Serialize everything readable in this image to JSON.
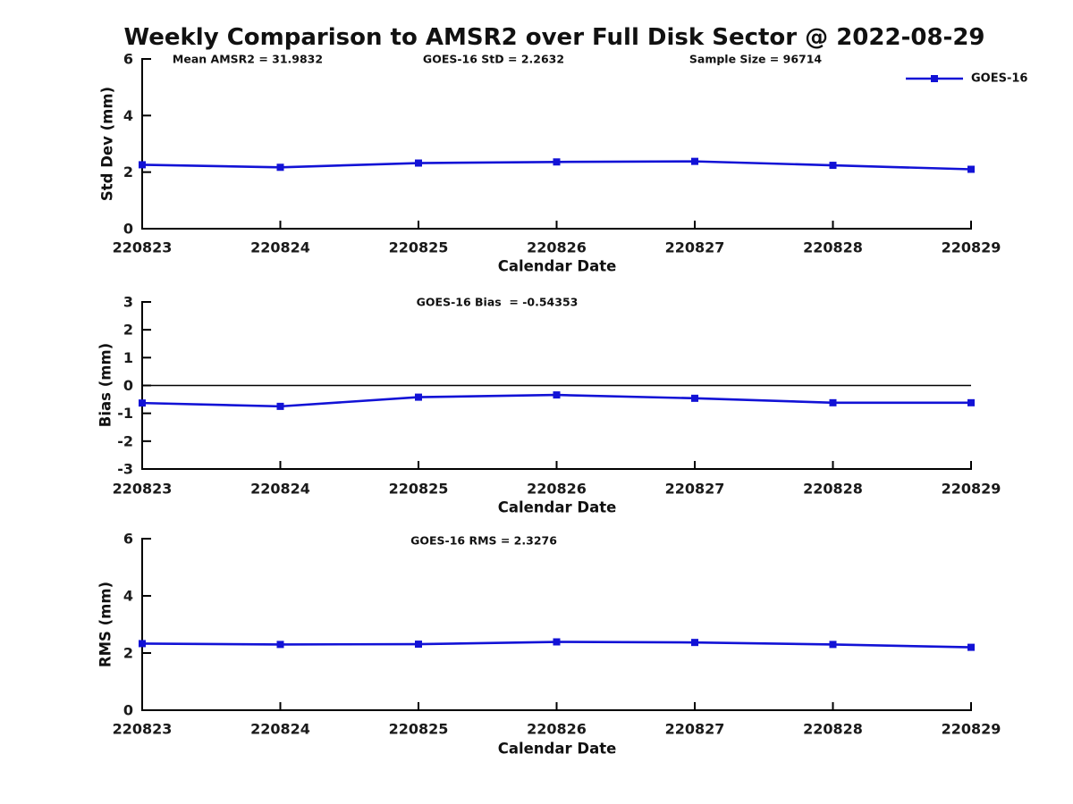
{
  "figure": {
    "title": "Weekly Comparison to AMSR2 over Full Disk Sector @ 2022-08-29"
  },
  "legend": {
    "label": "GOES-16",
    "marker": "filled-square",
    "position": "top-right"
  },
  "colors": {
    "series": "#1212d6",
    "axis": "#000000",
    "text": "#1a1a1a",
    "zero_line": "#000000"
  },
  "chart_data": [
    {
      "type": "line",
      "panel": "std-dev",
      "annotations": [
        "Mean AMSR2 = 31.9832",
        "GOES-16 StD = 2.2632",
        "Sample Size = 96714"
      ],
      "categories": [
        "220823",
        "220824",
        "220825",
        "220826",
        "220827",
        "220828",
        "220829"
      ],
      "series": [
        {
          "name": "GOES-16",
          "values": [
            2.26,
            2.17,
            2.32,
            2.36,
            2.38,
            2.24,
            2.1
          ]
        }
      ],
      "xlabel": "Calendar Date",
      "ylabel": "Std Dev (mm)",
      "ylim": [
        0,
        6
      ],
      "yticks": [
        0,
        2,
        4,
        6
      ],
      "grid": false,
      "zero_line": false
    },
    {
      "type": "line",
      "panel": "bias",
      "annotations": [
        "GOES-16 Bias  = -0.54353"
      ],
      "categories": [
        "220823",
        "220824",
        "220825",
        "220826",
        "220827",
        "220828",
        "220829"
      ],
      "series": [
        {
          "name": "GOES-16",
          "values": [
            -0.63,
            -0.75,
            -0.42,
            -0.34,
            -0.46,
            -0.62,
            -0.62
          ]
        }
      ],
      "xlabel": "Calendar Date",
      "ylabel": "Bias (mm)",
      "ylim": [
        -3,
        3
      ],
      "yticks": [
        -3,
        -2,
        -1,
        0,
        1,
        2,
        3
      ],
      "grid": false,
      "zero_line": true
    },
    {
      "type": "line",
      "panel": "rms",
      "annotations": [
        "GOES-16 RMS = 2.3276"
      ],
      "categories": [
        "220823",
        "220824",
        "220825",
        "220826",
        "220827",
        "220828",
        "220829"
      ],
      "series": [
        {
          "name": "GOES-16",
          "values": [
            2.33,
            2.3,
            2.31,
            2.39,
            2.37,
            2.3,
            2.2
          ]
        }
      ],
      "xlabel": "Calendar Date",
      "ylabel": "RMS (mm)",
      "ylim": [
        0,
        6
      ],
      "yticks": [
        0,
        2,
        4,
        6
      ],
      "grid": false,
      "zero_line": false
    }
  ]
}
